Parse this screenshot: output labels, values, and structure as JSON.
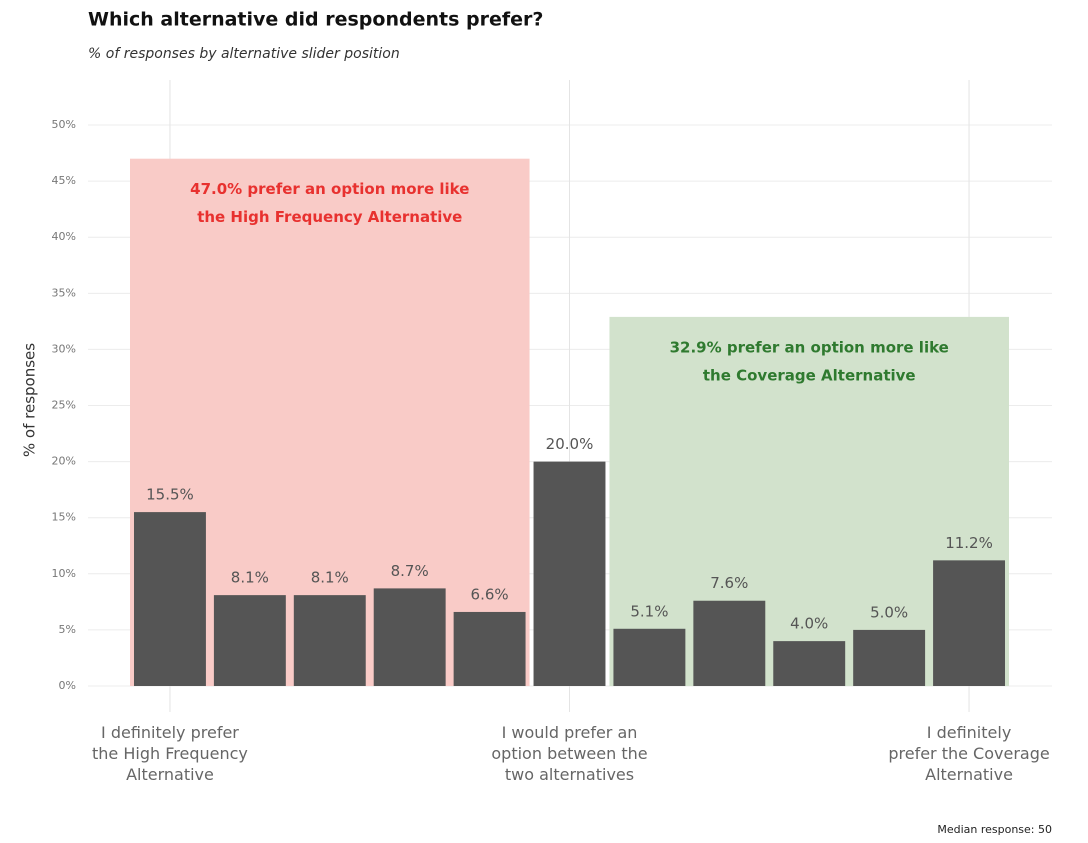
{
  "chart_data": {
    "type": "bar",
    "title": "Which alternative did respondents prefer?",
    "subtitle": "% of responses by alternative slider position",
    "y_label": "% of responses",
    "caption": "Median response: 50",
    "categories": [
      "I definitely prefer\nthe High Frequency\nAlternative",
      null,
      null,
      null,
      null,
      "I would prefer an\noption between the\ntwo alternatives",
      null,
      null,
      null,
      null,
      "I definitely\nprefer the Coverage\nAlternative"
    ],
    "values": [
      15.5,
      8.1,
      8.1,
      8.7,
      6.6,
      20.0,
      5.1,
      7.6,
      4.0,
      5.0,
      11.2
    ],
    "value_labels": [
      "15.5%",
      "8.1%",
      "8.1%",
      "8.7%",
      "6.6%",
      "20.0%",
      "5.1%",
      "7.6%",
      "4.0%",
      "5.0%",
      "11.2%"
    ],
    "color": "#555555",
    "ylim": [
      0,
      52
    ],
    "yticks": [
      {
        "value": 0,
        "label": "0%"
      },
      {
        "value": 5,
        "label": "5%"
      },
      {
        "value": 10,
        "label": "10%"
      },
      {
        "value": 15,
        "label": "15%"
      },
      {
        "value": 20,
        "label": "20%"
      },
      {
        "value": 25,
        "label": "25%"
      },
      {
        "value": 30,
        "label": "30%"
      },
      {
        "value": 35,
        "label": "35%"
      },
      {
        "value": 40,
        "label": "40%"
      },
      {
        "value": 45,
        "label": "45%"
      },
      {
        "value": 50,
        "label": "50%"
      }
    ],
    "grid": true,
    "regions": [
      {
        "value": 47.0,
        "text_lines": [
          "47.0% prefer an option more like",
          "the High Frequency Alternative"
        ],
        "fill": "#f9cbc7",
        "text_color": "#e8312f"
      },
      {
        "value": 32.9,
        "text_lines": [
          "32.9%  prefer an option more like",
          "the Coverage Alternative"
        ],
        "fill": "#d2e2cc",
        "text_color": "#2f7a2f"
      }
    ]
  }
}
